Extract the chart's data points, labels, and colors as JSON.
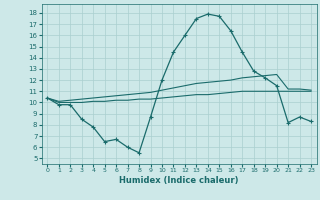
{
  "xlabel": "Humidex (Indice chaleur)",
  "background_color": "#cde8e8",
  "grid_color": "#aacfcf",
  "line_color": "#1a6b6b",
  "xlim": [
    -0.5,
    23.5
  ],
  "ylim": [
    4.5,
    18.8
  ],
  "yticks": [
    5,
    6,
    7,
    8,
    9,
    10,
    11,
    12,
    13,
    14,
    15,
    16,
    17,
    18
  ],
  "xtick_labels": [
    "0",
    "1",
    "2",
    "3",
    "4",
    "5",
    "6",
    "7",
    "8",
    "9",
    "10",
    "11",
    "12",
    "13",
    "14",
    "15",
    "16",
    "17",
    "18",
    "19",
    "20",
    "21",
    "22",
    "23"
  ],
  "line1_x": [
    0,
    1,
    2,
    3,
    4,
    5,
    6,
    7,
    8,
    9,
    10,
    11,
    12,
    13,
    14,
    15,
    16,
    17,
    18,
    19,
    20,
    21,
    22,
    23
  ],
  "line1_y": [
    10.4,
    9.8,
    9.8,
    8.5,
    7.8,
    6.5,
    6.7,
    6.0,
    5.5,
    8.7,
    12.0,
    14.5,
    16.0,
    17.5,
    17.9,
    17.7,
    16.4,
    14.5,
    12.8,
    12.2,
    11.5,
    8.2,
    8.7,
    8.3
  ],
  "line2_x": [
    0,
    1,
    2,
    3,
    4,
    5,
    6,
    7,
    8,
    9,
    10,
    11,
    12,
    13,
    14,
    15,
    16,
    17,
    18,
    19,
    20,
    21,
    22,
    23
  ],
  "line2_y": [
    10.4,
    10.0,
    10.0,
    10.0,
    10.1,
    10.1,
    10.2,
    10.2,
    10.3,
    10.3,
    10.4,
    10.5,
    10.6,
    10.7,
    10.7,
    10.8,
    10.9,
    11.0,
    11.0,
    11.0,
    11.0,
    11.0,
    11.0,
    11.0
  ],
  "line3_x": [
    0,
    1,
    2,
    3,
    4,
    5,
    6,
    7,
    8,
    9,
    10,
    11,
    12,
    13,
    14,
    15,
    16,
    17,
    18,
    19,
    20,
    21,
    22,
    23
  ],
  "line3_y": [
    10.4,
    10.1,
    10.2,
    10.3,
    10.4,
    10.5,
    10.6,
    10.7,
    10.8,
    10.9,
    11.1,
    11.3,
    11.5,
    11.7,
    11.8,
    11.9,
    12.0,
    12.2,
    12.3,
    12.4,
    12.5,
    11.2,
    11.2,
    11.1
  ]
}
